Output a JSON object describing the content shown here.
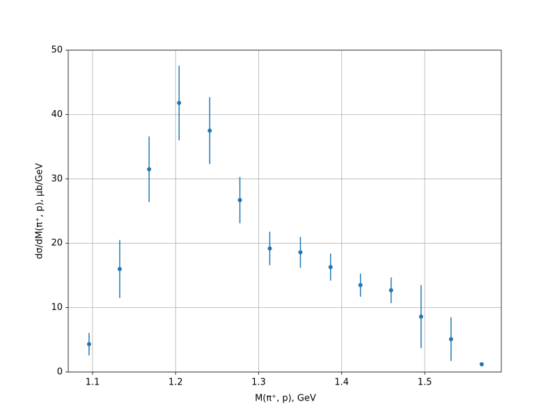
{
  "chart_data": {
    "type": "errorbar",
    "xlabel": "M(π⁺, p), GeV",
    "ylabel": "dσ/dM(π⁺, p), μb/GeV",
    "x": [
      1.0958,
      1.1327,
      1.1681,
      1.2042,
      1.2411,
      1.2774,
      1.3134,
      1.3503,
      1.3866,
      1.4226,
      1.4595,
      1.4956,
      1.5317,
      1.5686
    ],
    "values": [
      4.33,
      16.0,
      31.5,
      41.8,
      37.5,
      26.7,
      19.2,
      18.6,
      16.3,
      13.5,
      12.7,
      8.6,
      5.1,
      1.2
    ],
    "errors": [
      1.75,
      4.5,
      5.1,
      5.8,
      5.2,
      3.6,
      2.6,
      2.4,
      2.1,
      1.8,
      2.0,
      4.9,
      3.4,
      0.3
    ],
    "color": "#1f77b4",
    "xlim": [
      1.0707,
      1.5922
    ],
    "xticks": [
      1.1,
      1.2,
      1.3,
      1.4,
      1.5
    ],
    "ylim": [
      0,
      50
    ],
    "yticks": [
      0,
      10,
      20,
      30,
      40,
      50
    ],
    "grid": true
  }
}
